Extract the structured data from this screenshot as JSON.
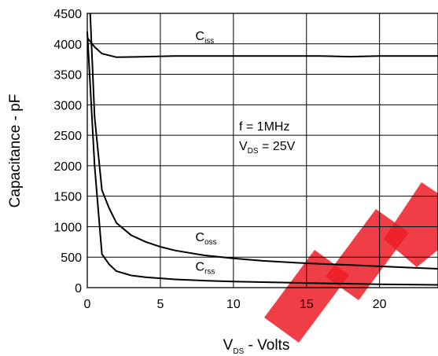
{
  "chart_data": {
    "type": "line",
    "xlabel": {
      "main": "V",
      "sub": "DS",
      "rest": " - Volts"
    },
    "ylabel": "Capacitance - pF",
    "xlim": [
      0,
      24
    ],
    "ylim": [
      0,
      4500
    ],
    "x_ticks": [
      0,
      5,
      10,
      15,
      20
    ],
    "y_ticks": [
      0,
      500,
      1000,
      1500,
      2000,
      2500,
      3000,
      3500,
      4000,
      4500
    ],
    "grid": true,
    "annotation": {
      "line1": "f = 1MHz",
      "line2_main": "V",
      "line2_sub": "DS",
      "line2_rest": " = 25V"
    },
    "series": [
      {
        "name": "C",
        "sub": "iss",
        "label_x": 7.4,
        "label_y": 4060,
        "x": [
          0,
          0.5,
          1,
          2,
          3,
          4,
          6,
          8,
          10,
          14,
          16,
          18,
          20,
          22,
          24
        ],
        "y": [
          4100,
          3950,
          3840,
          3780,
          3785,
          3790,
          3800,
          3800,
          3800,
          3800,
          3800,
          3790,
          3800,
          3800,
          3800
        ]
      },
      {
        "name": "C",
        "sub": "oss",
        "label_x": 7.4,
        "label_y": 760,
        "x": [
          0.2,
          0.5,
          1,
          1.5,
          2,
          3,
          4,
          5,
          6,
          8,
          10,
          12,
          15,
          18,
          20,
          24
        ],
        "y": [
          4500,
          2800,
          1600,
          1300,
          1060,
          860,
          750,
          670,
          610,
          530,
          480,
          440,
          400,
          370,
          350,
          310
        ]
      },
      {
        "name": "C",
        "sub": "rss",
        "label_x": 7.4,
        "label_y": 280,
        "x": [
          0,
          0.5,
          1,
          1.5,
          2,
          3,
          4,
          6,
          8,
          10,
          14,
          20,
          24
        ],
        "y": [
          4200,
          2000,
          550,
          380,
          270,
          200,
          170,
          135,
          115,
          100,
          80,
          55,
          45
        ]
      }
    ]
  },
  "style": {
    "line_color": "#000000",
    "grid_color": "#000000",
    "watermark_color": "#ec1c24"
  }
}
